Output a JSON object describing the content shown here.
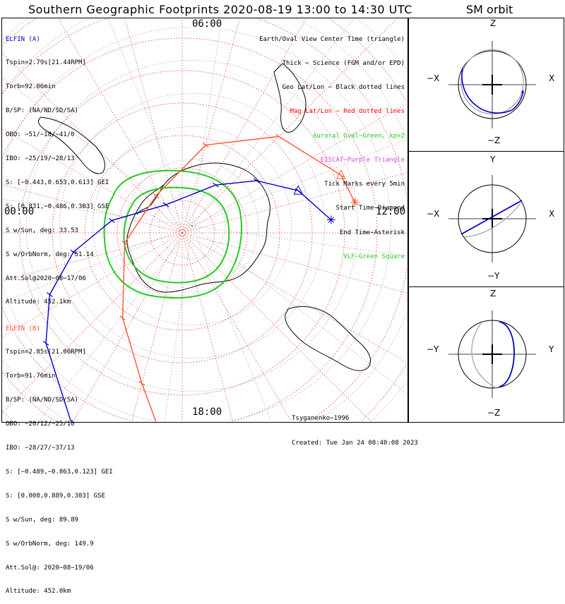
{
  "title": "Southern Geographic Footprints 2020-08-19 13:00 to 14:30 UTC",
  "sm_title": "SM orbit",
  "hour_labels": {
    "top": "06:00",
    "left": "00:00",
    "right": "12:00",
    "bottom": "18:00"
  },
  "elfin_a": {
    "name": "ELFIN (A)",
    "lines": [
      "Tspin=2.79s[21.44RPM]",
      "Torb=92.06min",
      "B/SP: (NA/ND/SD/SA)",
      "OBO: −51/−18/−41/0",
      "IBO: −25/19/−28/13",
      "S: [−0.443,0.653,0.613] GEI",
      "S: [0.831,−0.486,0.303] GSE",
      "S w/Sun, deg: 33.53",
      "S w/OrbNorm, deg: 51.14",
      "Att.Sol@2020−08−17/06",
      "Altitude: 452.1km"
    ],
    "color": "#0000cc"
  },
  "elfin_b": {
    "name": "ELFIN (B)",
    "lines": [
      "Tspin=2.85s[21.06RPM]",
      "Torb=91.76min",
      "B/SP: (NA/ND/SD/SA)",
      "OBO: −20/12/−25/10",
      "IBO: −28/27/−37/13",
      "S: [−0.489,−0.863,0.123] GEI",
      "S: [0.008,0.889,0.303] GSE",
      "S w/Sun, deg: 89.89",
      "S w/OrbNorm, deg: 149.9",
      "Att.Sol@: 2020−08−19/06",
      "Altitude: 452.0km"
    ],
    "color": "#ff5533"
  },
  "legend": [
    {
      "text": "Earth/Oval View Center Time (triangle)",
      "color": "#000000"
    },
    {
      "text": "Thick − Science (FGM and/or EPD)",
      "color": "#000000"
    },
    {
      "text": "Geo Lat/Lon − Black dotted lines",
      "color": "#000000"
    },
    {
      "text": "Mag Lat/Lon − Red dotted lines",
      "color": "#ff0000"
    },
    {
      "text": "Auroral Oval−Green, kp=2",
      "color": "#22cc22"
    },
    {
      "text": "EISCAT−Purple Triangle",
      "color": "#dd44dd"
    },
    {
      "text": "Tick Marks every 5min",
      "color": "#000000"
    },
    {
      "text": "Start Time−Diamond",
      "color": "#000000"
    },
    {
      "text": "End Time−Asterisk",
      "color": "#000000"
    },
    {
      "text": "VLF−Green Square",
      "color": "#22cc22"
    }
  ],
  "credit": {
    "line1": "Tsyganenko−1996",
    "line2": "Created: Tue Jan 24 08:40:08 2023"
  },
  "sm_panels": [
    {
      "top": "Z",
      "bottom": "−Z",
      "left": "−X",
      "right": "X"
    },
    {
      "top": "Y",
      "bottom": "−Y",
      "left": "−X",
      "right": "X"
    },
    {
      "top": "Z",
      "bottom": "−Z",
      "left": "−Y",
      "right": "Y"
    }
  ],
  "chart_data": {
    "type": "polar-map",
    "projection": "southern polar stereographic",
    "local_time_labels": [
      "00:00",
      "06:00",
      "12:00",
      "18:00"
    ],
    "tick_interval_minutes": 5,
    "auroral_oval_kp": 2,
    "series": [
      {
        "name": "ELFIN (A)",
        "color": "#0000cc",
        "footprint_lonlat": [
          [
            -60,
            -22
          ],
          [
            -39,
            -36
          ],
          [
            -25,
            -45
          ],
          [
            -10,
            -56
          ],
          [
            10,
            -68
          ],
          [
            60,
            -80
          ],
          [
            125,
            -72
          ],
          [
            145,
            -62
          ],
          [
            160,
            -52
          ],
          [
            175,
            -44
          ]
        ]
      },
      {
        "name": "ELFIN (B)",
        "color": "#ff5533",
        "footprint_lonlat": [
          [
            -85,
            -25
          ],
          [
            -75,
            -42
          ],
          [
            -55,
            -58
          ],
          [
            -10,
            -72
          ],
          [
            55,
            -76
          ],
          [
            105,
            -62
          ],
          [
            135,
            -48
          ],
          [
            160,
            -38
          ],
          [
            170,
            -36
          ]
        ]
      }
    ]
  }
}
